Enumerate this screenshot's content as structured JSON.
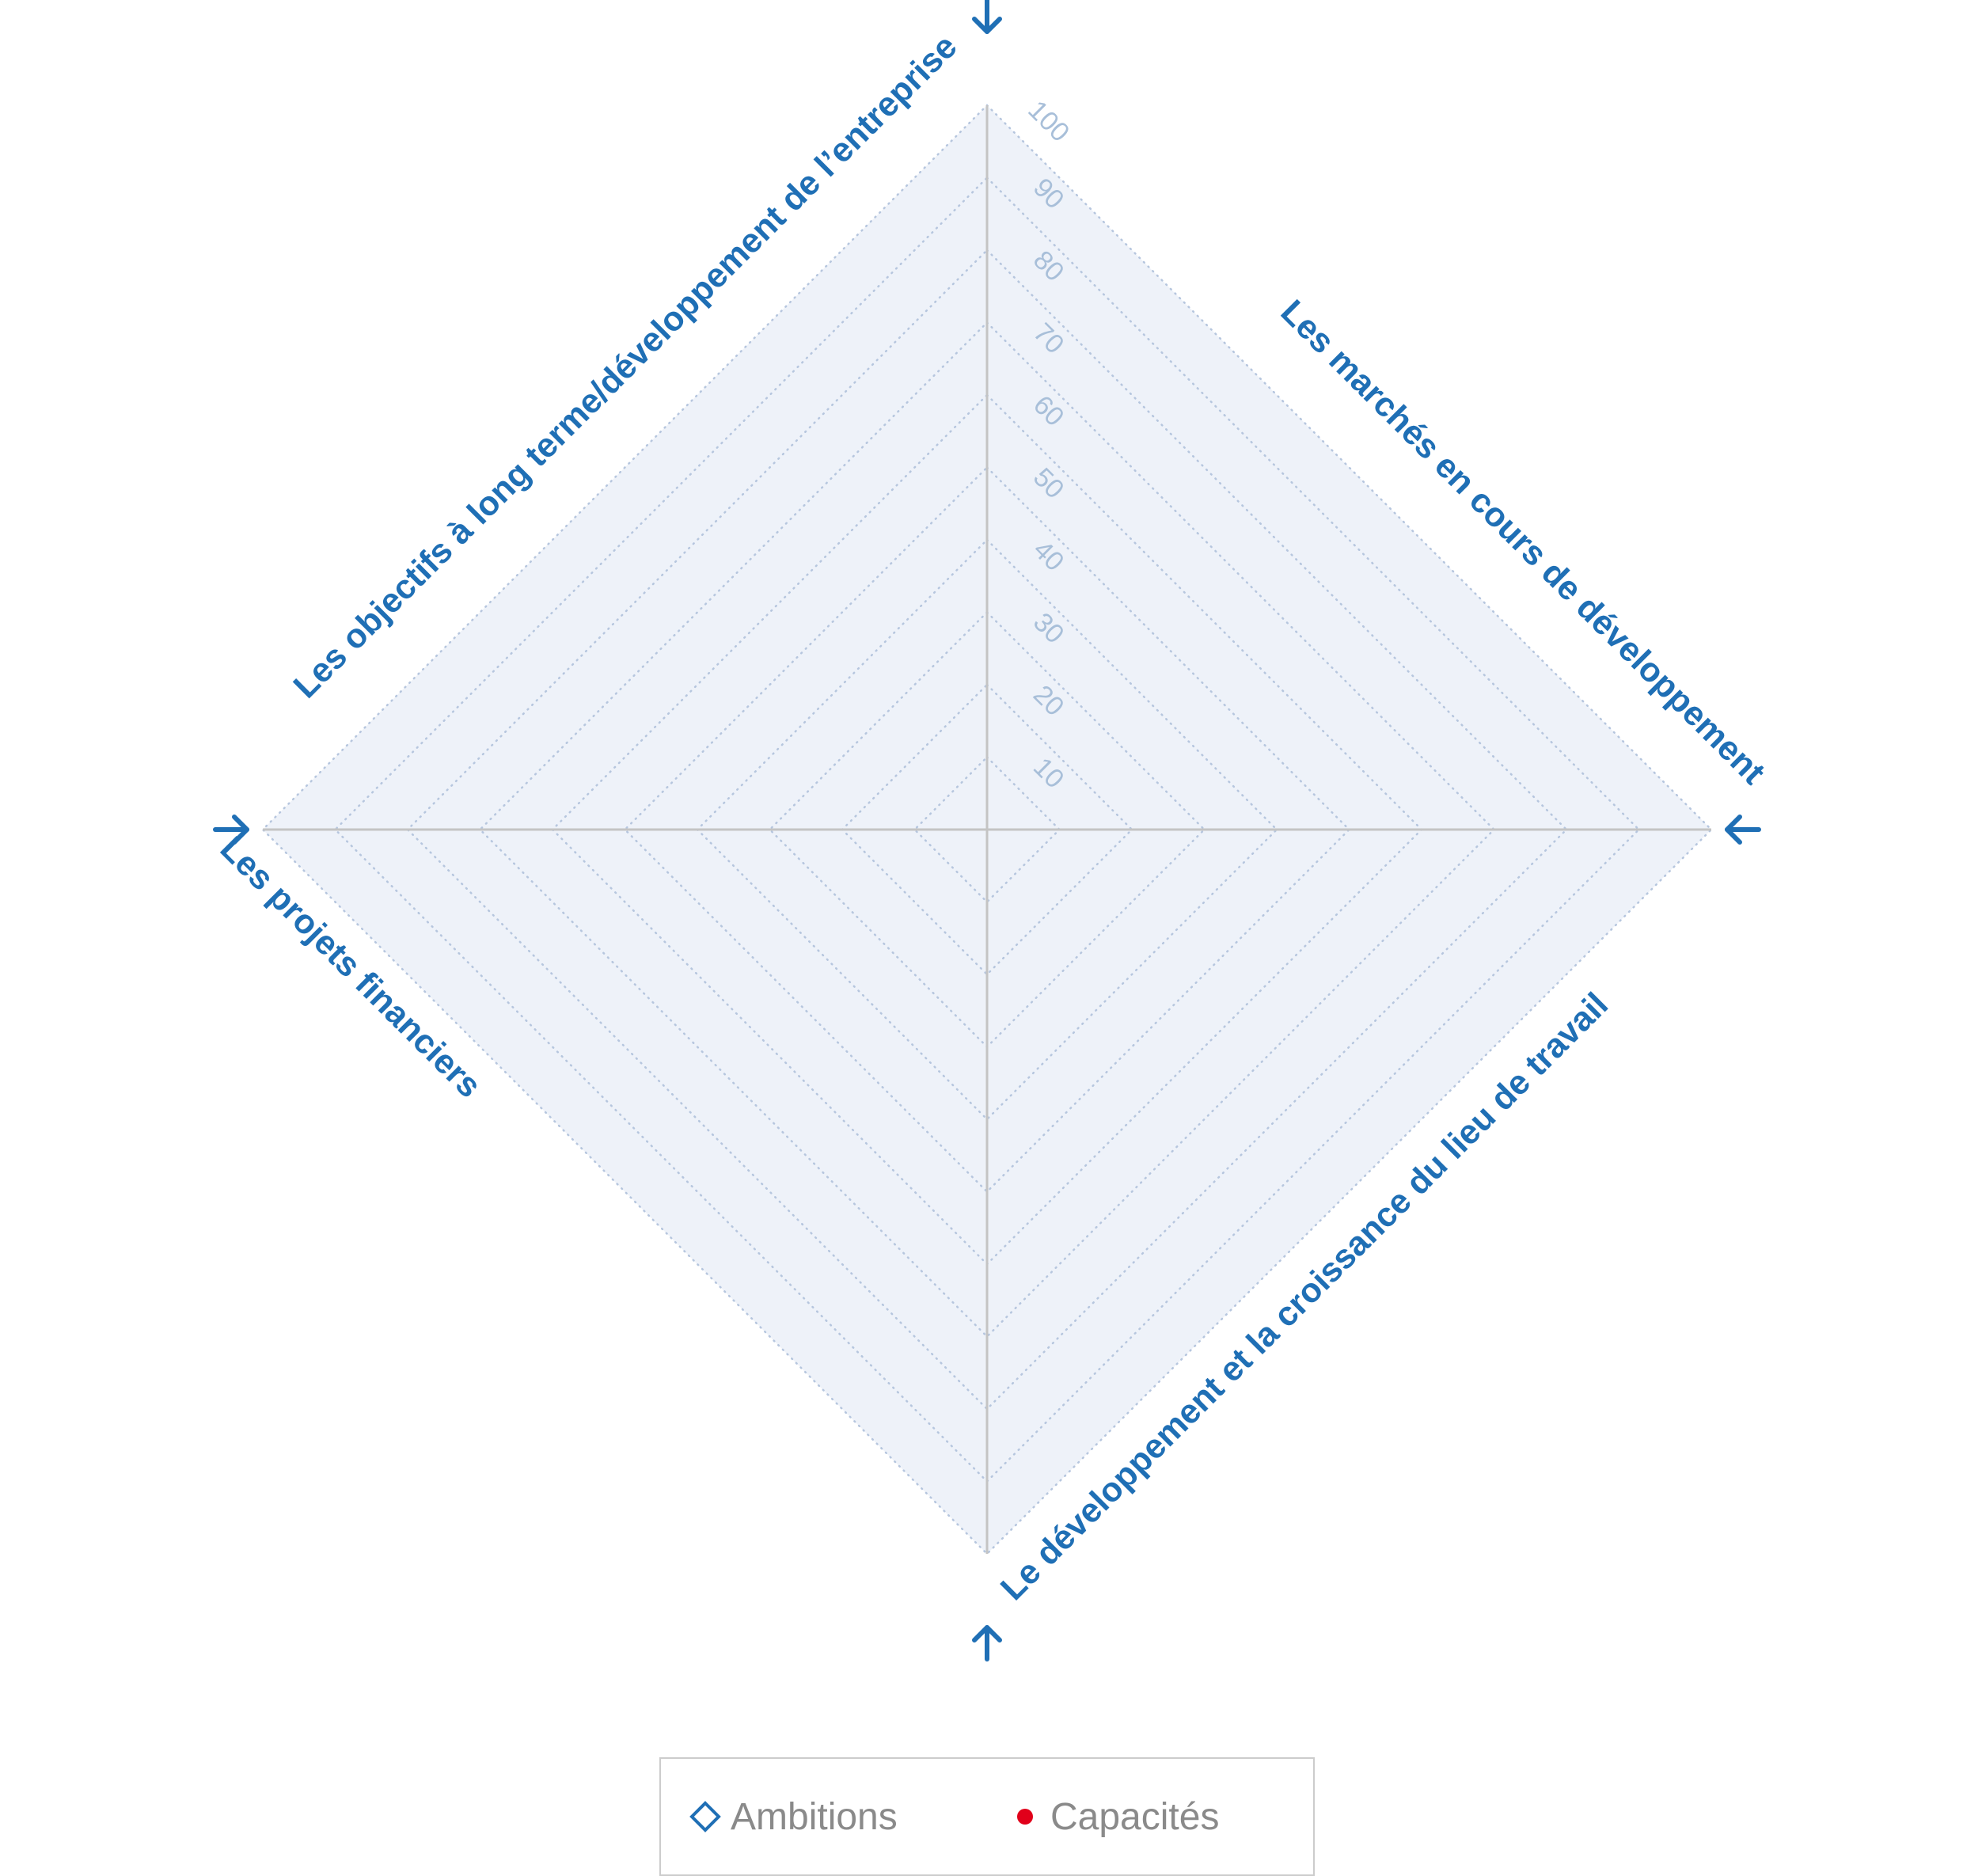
{
  "chart_data": {
    "type": "radar",
    "axes": [
      "Les objectifs à long terme/développement de l’entreprise",
      "Les marchés en cours de développement",
      "Le développement et la croissance du lieu de travail",
      "Les projets financiers"
    ],
    "r_ticks": [
      "10",
      "20",
      "30",
      "40",
      "50",
      "60",
      "70",
      "80",
      "90",
      "100"
    ],
    "r_range": [
      0,
      100
    ],
    "series": [
      {
        "name": "Ambitions",
        "marker": "diamond-outline",
        "color": "#1f6fb5",
        "values": []
      },
      {
        "name": "Capacités",
        "marker": "dot",
        "color": "#e1001a",
        "values": []
      }
    ],
    "legend_position": "bottom"
  },
  "legend": {
    "ambitions_label": "Ambitions",
    "capacites_label": "Capacités"
  },
  "colors": {
    "accent_blue": "#1f6fb5",
    "grid_fill": "#eef2f9",
    "grid_dots": "#b6c6de",
    "axis_line": "#c4c4c4",
    "tick_text": "#a8bfd9",
    "legend_text": "#8a8a8a",
    "capacites_red": "#e1001a"
  }
}
